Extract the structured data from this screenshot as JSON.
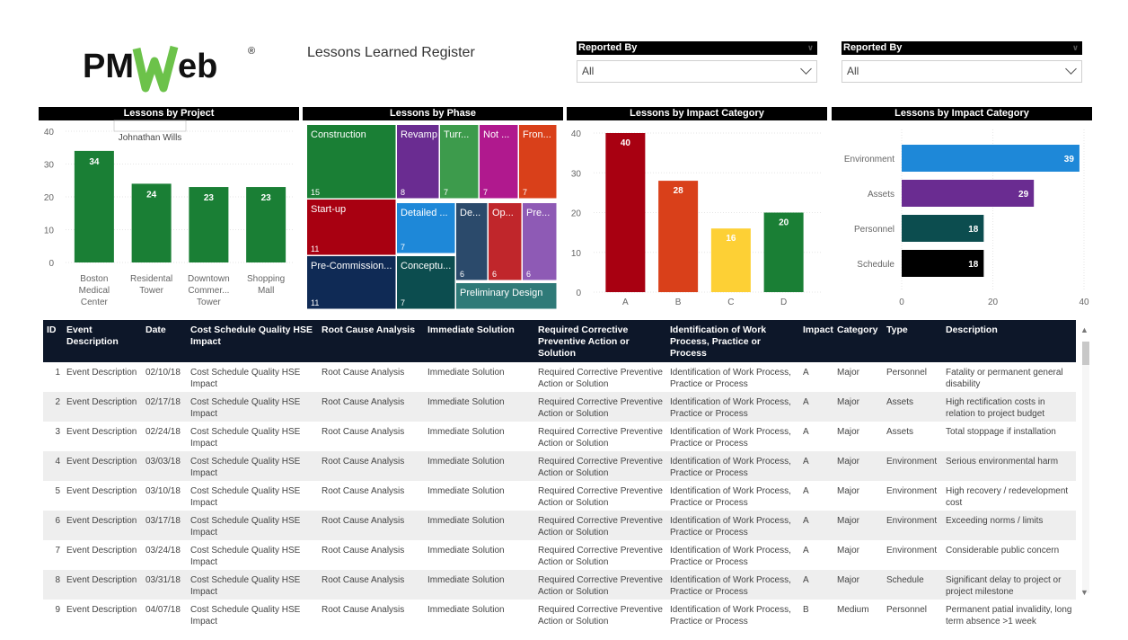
{
  "header": {
    "logo_text": "PMWeb",
    "logo_mark": "®",
    "title": "Lessons Learned Register"
  },
  "slicers": [
    {
      "label": "Reported By",
      "value": "All"
    },
    {
      "label": "Reported By",
      "value": "All"
    }
  ],
  "colors": {
    "green": "#1a7f35",
    "dark_navy": "#0d1729",
    "red": "#a80011",
    "orange_red": "#d9401a",
    "yellow": "#fdd035",
    "blue": "#1e88d8",
    "purple": "#6a2c91",
    "teal_dark": "#0c4d4f"
  },
  "charts": {
    "project": {
      "title": "Lessons by Project",
      "tooltip": "Johnathan Wills",
      "chart_data": {
        "type": "bar",
        "categories": [
          "Boston Medical Center",
          "Residental Tower",
          "Downtown Commer... Tower",
          "Shopping Mall"
        ],
        "category_lines": [
          [
            "Boston",
            "Medical",
            "Center"
          ],
          [
            "Residental",
            "Tower"
          ],
          [
            "Downtown",
            "Commer...",
            "Tower"
          ],
          [
            "Shopping",
            "Mall"
          ]
        ],
        "values": [
          34,
          24,
          23,
          23
        ],
        "ylim": [
          0,
          40
        ],
        "yticks": [
          0,
          10,
          20,
          30,
          40
        ],
        "color": "#1a7f35"
      }
    },
    "phase": {
      "title": "Lessons by Phase",
      "chart_data": {
        "type": "treemap",
        "items": [
          {
            "label": "Construction",
            "value": 15,
            "color": "#1a7f35"
          },
          {
            "label": "Revamp",
            "value": 8,
            "color": "#6a2c91"
          },
          {
            "label": "Turr...",
            "value": 7,
            "color": "#3d9b4c"
          },
          {
            "label": "Not ...",
            "value": 7,
            "color": "#b0198e"
          },
          {
            "label": "Fron...",
            "value": 7,
            "color": "#d9401a"
          },
          {
            "label": "Start-up",
            "value": 11,
            "color": "#a80011"
          },
          {
            "label": "Detailed ...",
            "value": 7,
            "color": "#1e88d8"
          },
          {
            "label": "De...",
            "value": 6,
            "color": "#2b4a6b"
          },
          {
            "label": "Op...",
            "value": 6,
            "color": "#c0262b"
          },
          {
            "label": "Pre...",
            "value": 6,
            "color": "#8e5ab5"
          },
          {
            "label": "Pre-Commission...",
            "value": 11,
            "color": "#0f2a55"
          },
          {
            "label": "Conceptu...",
            "value": 7,
            "color": "#0c4d4f"
          },
          {
            "label": "Preliminary Design",
            "value": "",
            "color": "#2f7a78"
          }
        ]
      }
    },
    "impact_col": {
      "title": "Lessons by Impact Category",
      "chart_data": {
        "type": "bar",
        "categories": [
          "A",
          "B",
          "C",
          "D"
        ],
        "values": [
          40,
          28,
          16,
          20
        ],
        "colors": [
          "#a80011",
          "#d9401a",
          "#fdd035",
          "#1a7f35"
        ],
        "ylim": [
          0,
          40
        ],
        "yticks": [
          0,
          10,
          20,
          30,
          40
        ]
      }
    },
    "impact_bar": {
      "title": "Lessons by Impact Category",
      "chart_data": {
        "type": "bar",
        "orientation": "horizontal",
        "categories": [
          "Environment",
          "Assets",
          "Personnel",
          "Schedule"
        ],
        "values": [
          39,
          29,
          18,
          18
        ],
        "colors": [
          "#1e88d8",
          "#6a2c91",
          "#0c4d4f",
          "#000000"
        ],
        "xlim": [
          0,
          40
        ],
        "xticks": [
          0,
          20,
          40
        ]
      }
    }
  },
  "table": {
    "columns": [
      "ID",
      "Event Description",
      "Date",
      "Cost Schedule Quality HSE Impact",
      "Root Cause Analysis",
      "Immediate Solution",
      "Required Corrective Preventive Action or Solution",
      "Identification of Work Process, Practice or Process",
      "Impact",
      "Category",
      "Type",
      "Description"
    ],
    "rows": [
      [
        "1",
        "Event Description",
        "02/10/18",
        "Cost Schedule Quality HSE Impact",
        "Root Cause Analysis",
        "Immediate Solution",
        "Required Corrective Preventive Action or Solution",
        "Identification of Work Process, Practice or Process",
        "A",
        "Major",
        "Personnel",
        "Fatality or permanent general disability"
      ],
      [
        "2",
        "Event Description",
        "02/17/18",
        "Cost Schedule Quality HSE Impact",
        "Root Cause Analysis",
        "Immediate Solution",
        "Required Corrective Preventive Action or Solution",
        "Identification of Work Process, Practice or Process",
        "A",
        "Major",
        "Assets",
        "High rectification costs in relation to project budget"
      ],
      [
        "3",
        "Event Description",
        "02/24/18",
        "Cost Schedule Quality HSE Impact",
        "Root Cause Analysis",
        "Immediate Solution",
        "Required Corrective Preventive Action or Solution",
        "Identification of Work Process, Practice or Process",
        "A",
        "Major",
        "Assets",
        "Total stoppage if installation"
      ],
      [
        "4",
        "Event Description",
        "03/03/18",
        "Cost Schedule Quality HSE Impact",
        "Root Cause Analysis",
        "Immediate Solution",
        "Required Corrective Preventive Action or Solution",
        "Identification of Work Process, Practice or Process",
        "A",
        "Major",
        "Environment",
        "Serious environmental harm"
      ],
      [
        "5",
        "Event Description",
        "03/10/18",
        "Cost Schedule Quality HSE Impact",
        "Root Cause Analysis",
        "Immediate Solution",
        "Required Corrective Preventive Action or Solution",
        "Identification of Work Process, Practice or Process",
        "A",
        "Major",
        "Environment",
        "High recovery / redevelopment cost"
      ],
      [
        "6",
        "Event Description",
        "03/17/18",
        "Cost Schedule Quality HSE Impact",
        "Root Cause Analysis",
        "Immediate Solution",
        "Required Corrective Preventive Action or Solution",
        "Identification of Work Process, Practice or Process",
        "A",
        "Major",
        "Environment",
        "Exceeding norms / limits"
      ],
      [
        "7",
        "Event Description",
        "03/24/18",
        "Cost Schedule Quality HSE Impact",
        "Root Cause Analysis",
        "Immediate Solution",
        "Required Corrective Preventive Action or Solution",
        "Identification of Work Process, Practice or Process",
        "A",
        "Major",
        "Environment",
        "Considerable public concern"
      ],
      [
        "8",
        "Event Description",
        "03/31/18",
        "Cost Schedule Quality HSE Impact",
        "Root Cause Analysis",
        "Immediate Solution",
        "Required Corrective Preventive Action or Solution",
        "Identification of Work Process, Practice or Process",
        "A",
        "Major",
        "Schedule",
        "Significant delay to project or project milestone"
      ],
      [
        "9",
        "Event Description",
        "04/07/18",
        "Cost Schedule Quality HSE Impact",
        "Root Cause Analysis",
        "Immediate Solution",
        "Required Corrective Preventive Action or Solution",
        "Identification of Work Process, Practice or Process",
        "B",
        "Medium",
        "Personnel",
        "Permanent patial invalidity, long term absence >1 week"
      ]
    ]
  }
}
